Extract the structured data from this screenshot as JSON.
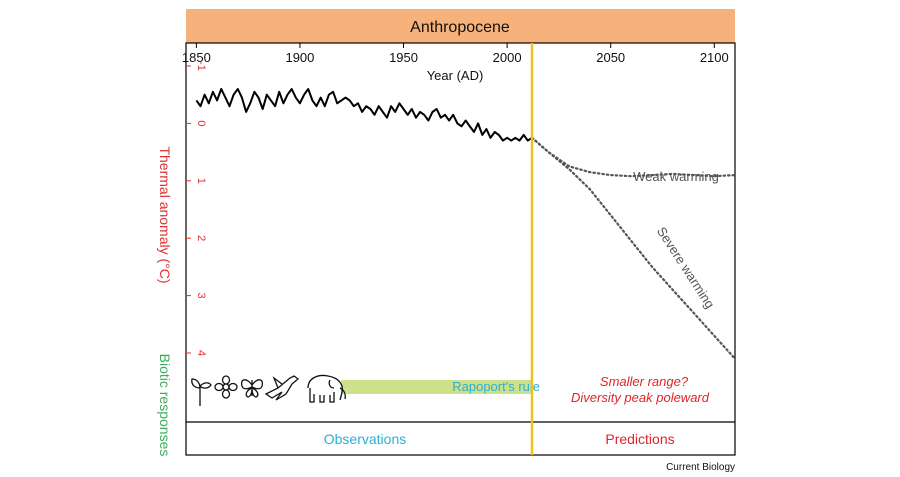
{
  "header": {
    "title": "Anthropocene",
    "band_color": "#f6b27a"
  },
  "footer": {
    "left": "Observations",
    "right": "Predictions",
    "credit": "Current Biology"
  },
  "labels": {
    "weak": "Weak warming",
    "severe": "Severe warming",
    "rapoport": "Rapoport's rule",
    "pred_line1": "Smaller range?",
    "pred_line2": "Diversity peak poleward"
  },
  "icons": [
    "seedling-icon",
    "flower-icon",
    "butterfly-icon",
    "bird-icon",
    "elephant-icon"
  ],
  "colors": {
    "observed_line": "#000000",
    "projection_line": "#555555",
    "divider": "#f0c020",
    "rapoport_bar": "#cde08a",
    "rapoport_text": "#2bb0d6",
    "prediction_text": "#e0252a",
    "observations_text": "#2bb0d6",
    "ylabel_thermal": "#e03030",
    "ylabel_biotic": "#3aae5a"
  },
  "chart_data": {
    "type": "line",
    "xlabel": "Year (AD)",
    "ylabel": "Thermal anomaly (°C)",
    "ylabel_secondary": "Biotic responses",
    "xlim": [
      1845,
      2110
    ],
    "ylim": [
      -1,
      4
    ],
    "y_axis_inverted": true,
    "x_ticks": [
      1850,
      1900,
      1950,
      2000,
      2050,
      2100
    ],
    "y_ticks": [
      -1,
      0,
      1,
      2,
      3,
      4
    ],
    "divider_year": 2012,
    "rapoport_years": [
      1920,
      2012
    ],
    "series": [
      {
        "style": "solid",
        "x": [
          1850,
          1852,
          1854,
          1856,
          1858,
          1860,
          1862,
          1864,
          1866,
          1868,
          1870,
          1872,
          1874,
          1876,
          1878,
          1880,
          1882,
          1884,
          1886,
          1888,
          1890,
          1892,
          1894,
          1896,
          1898,
          1900,
          1902,
          1904,
          1906,
          1908,
          1910,
          1912,
          1914,
          1916,
          1918,
          1920,
          1922,
          1924,
          1926,
          1928,
          1930,
          1932,
          1934,
          1936,
          1938,
          1940,
          1942,
          1944,
          1946,
          1948,
          1950,
          1952,
          1954,
          1956,
          1958,
          1960,
          1962,
          1964,
          1966,
          1968,
          1970,
          1972,
          1974,
          1976,
          1978,
          1980,
          1982,
          1984,
          1986,
          1988,
          1990,
          1992,
          1994,
          1996,
          1998,
          2000,
          2002,
          2004,
          2006,
          2008,
          2010,
          2012
        ],
        "y": [
          -0.4,
          -0.3,
          -0.5,
          -0.35,
          -0.55,
          -0.4,
          -0.6,
          -0.45,
          -0.3,
          -0.5,
          -0.6,
          -0.45,
          -0.2,
          -0.35,
          -0.55,
          -0.45,
          -0.25,
          -0.5,
          -0.4,
          -0.3,
          -0.55,
          -0.35,
          -0.5,
          -0.6,
          -0.45,
          -0.35,
          -0.5,
          -0.6,
          -0.4,
          -0.3,
          -0.45,
          -0.3,
          -0.5,
          -0.55,
          -0.35,
          -0.4,
          -0.45,
          -0.4,
          -0.3,
          -0.35,
          -0.2,
          -0.3,
          -0.25,
          -0.15,
          -0.3,
          -0.2,
          -0.1,
          -0.3,
          -0.2,
          -0.35,
          -0.25,
          -0.15,
          -0.25,
          -0.1,
          -0.2,
          -0.15,
          -0.05,
          -0.2,
          -0.25,
          -0.1,
          -0.15,
          -0.05,
          -0.15,
          0.0,
          0.05,
          -0.05,
          0.05,
          0.15,
          0.0,
          0.2,
          0.1,
          0.25,
          0.15,
          0.2,
          0.3,
          0.25,
          0.3,
          0.25,
          0.3,
          0.2,
          0.3,
          0.25
        ]
      },
      {
        "name": "Weak warming",
        "style": "dotted",
        "x": [
          2012,
          2020,
          2030,
          2040,
          2050,
          2060,
          2070,
          2080,
          2090,
          2100,
          2110
        ],
        "y": [
          0.25,
          0.5,
          0.75,
          0.85,
          0.9,
          0.92,
          0.9,
          0.88,
          0.9,
          0.92,
          0.9
        ]
      },
      {
        "name": "Severe warming",
        "style": "dotted",
        "x": [
          2012,
          2020,
          2030,
          2040,
          2050,
          2060,
          2070,
          2080,
          2090,
          2100,
          2110
        ],
        "y": [
          0.25,
          0.5,
          0.8,
          1.15,
          1.6,
          2.05,
          2.5,
          2.9,
          3.3,
          3.7,
          4.1
        ]
      }
    ]
  }
}
